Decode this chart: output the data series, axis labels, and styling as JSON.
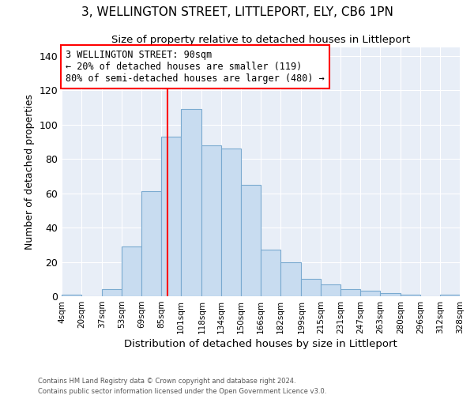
{
  "title": "3, WELLINGTON STREET, LITTLEPORT, ELY, CB6 1PN",
  "subtitle": "Size of property relative to detached houses in Littleport",
  "xlabel": "Distribution of detached houses by size in Littleport",
  "ylabel": "Number of detached properties",
  "bar_color": "#c8dcf0",
  "bar_edge_color": "#7aaad0",
  "background_color": "#e8eef7",
  "grid_color": "#ffffff",
  "bin_labels": [
    "4sqm",
    "20sqm",
    "37sqm",
    "53sqm",
    "69sqm",
    "85sqm",
    "101sqm",
    "118sqm",
    "134sqm",
    "150sqm",
    "166sqm",
    "182sqm",
    "199sqm",
    "215sqm",
    "231sqm",
    "247sqm",
    "263sqm",
    "280sqm",
    "296sqm",
    "312sqm",
    "328sqm"
  ],
  "bin_edges": [
    4,
    20,
    37,
    53,
    69,
    85,
    101,
    118,
    134,
    150,
    166,
    182,
    199,
    215,
    231,
    247,
    263,
    280,
    296,
    312,
    328
  ],
  "bar_heights": [
    1,
    0,
    4,
    29,
    61,
    93,
    109,
    88,
    86,
    65,
    27,
    20,
    10,
    7,
    4,
    3,
    2,
    1,
    0,
    1
  ],
  "ylim": [
    0,
    145
  ],
  "yticks": [
    0,
    20,
    40,
    60,
    80,
    100,
    120,
    140
  ],
  "red_line_x": 90,
  "annotation_title": "3 WELLINGTON STREET: 90sqm",
  "annotation_line1": "← 20% of detached houses are smaller (119)",
  "annotation_line2": "80% of semi-detached houses are larger (480) →",
  "footer1": "Contains HM Land Registry data © Crown copyright and database right 2024.",
  "footer2": "Contains public sector information licensed under the Open Government Licence v3.0."
}
